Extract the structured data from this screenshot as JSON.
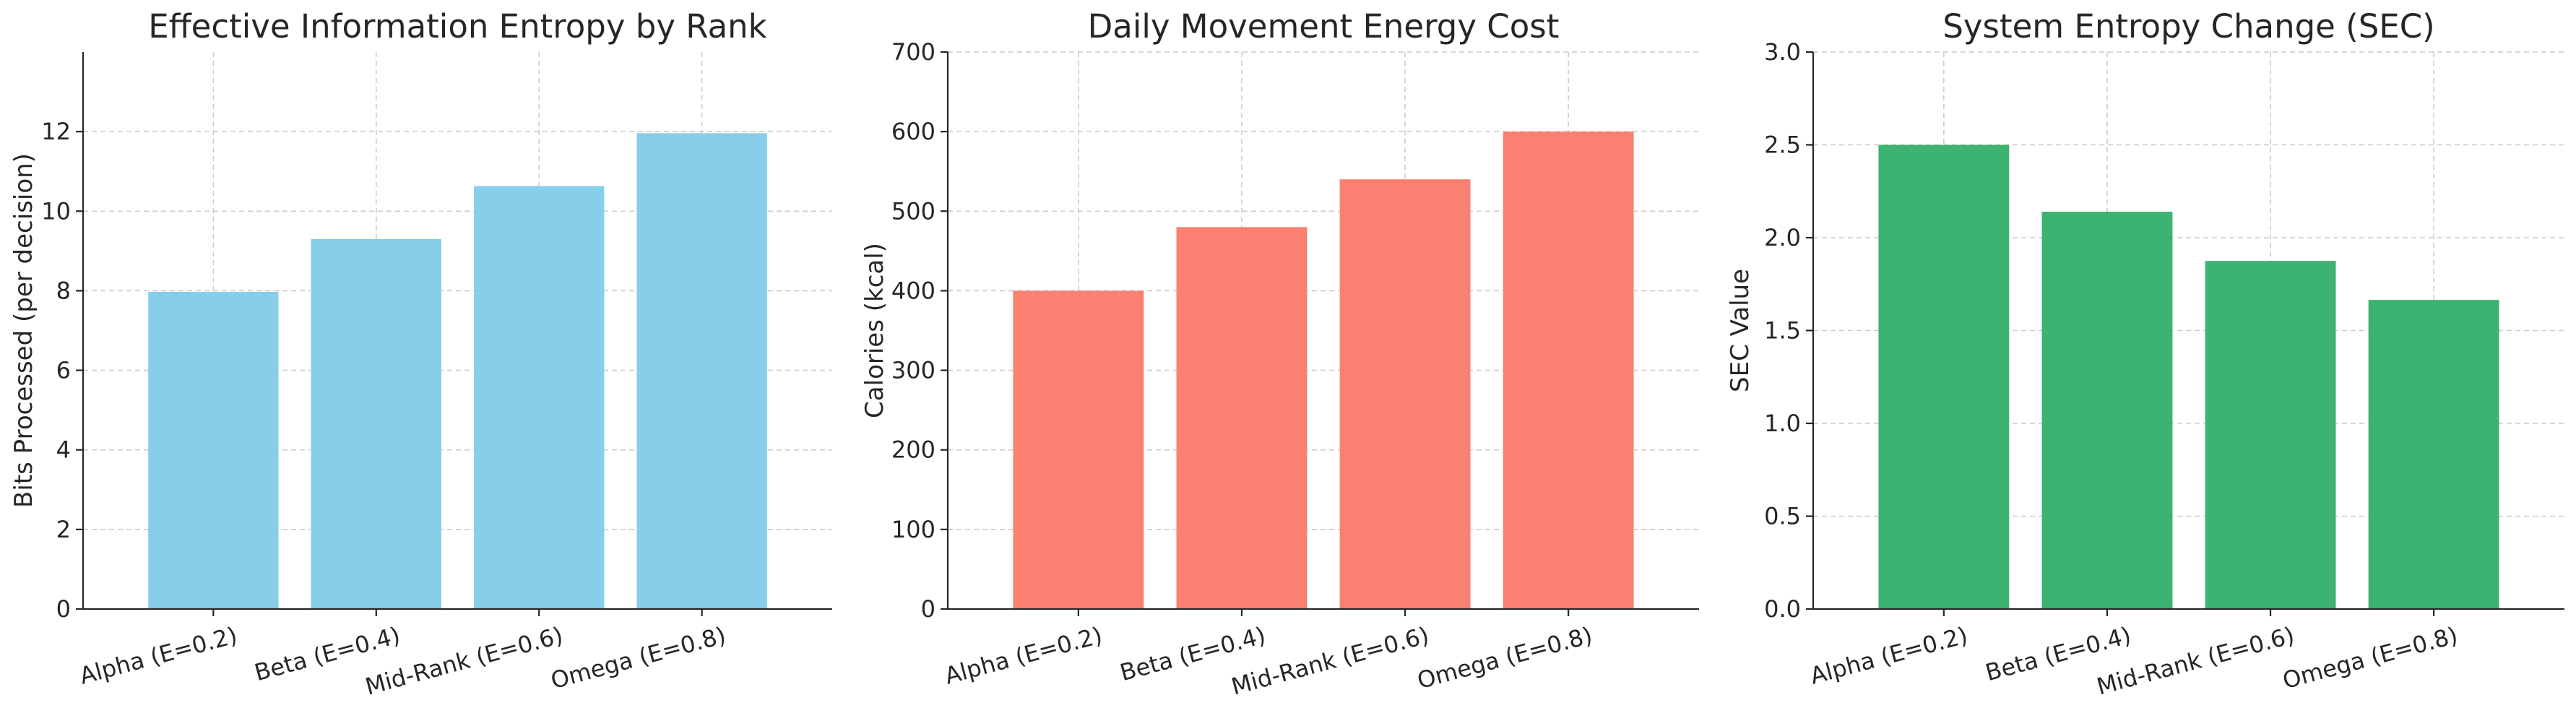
{
  "chart_data": [
    {
      "type": "bar",
      "title": "Effective Information Entropy by Rank",
      "xlabel": "",
      "ylabel": "Bits Processed (per decision)",
      "categories": [
        "Alpha (E=0.2)",
        "Beta (E=0.4)",
        "Mid-Rank (E=0.6)",
        "Omega (E=0.8)"
      ],
      "values": [
        7.97,
        9.3,
        10.63,
        11.96
      ],
      "ylim": [
        0,
        14
      ],
      "yticks": [
        0,
        2,
        4,
        6,
        8,
        10,
        12
      ],
      "ytick_labels": [
        "0",
        "2",
        "4",
        "6",
        "8",
        "10",
        "12"
      ],
      "color": "#87ceeb",
      "grid": true
    },
    {
      "type": "bar",
      "title": "Daily Movement Energy Cost",
      "xlabel": "",
      "ylabel": "Calories (kcal)",
      "categories": [
        "Alpha (E=0.2)",
        "Beta (E=0.4)",
        "Mid-Rank (E=0.6)",
        "Omega (E=0.8)"
      ],
      "values": [
        400,
        480,
        540,
        600
      ],
      "ylim": [
        0,
        700
      ],
      "yticks": [
        0,
        100,
        200,
        300,
        400,
        500,
        600,
        700
      ],
      "ytick_labels": [
        "0",
        "100",
        "200",
        "300",
        "400",
        "500",
        "600",
        "700"
      ],
      "color": "#fa8072",
      "grid": true
    },
    {
      "type": "bar",
      "title": "System Entropy Change (SEC)",
      "xlabel": "",
      "ylabel": "SEC Value",
      "categories": [
        "Alpha (E=0.2)",
        "Beta (E=0.4)",
        "Mid-Rank (E=0.6)",
        "Omega (E=0.8)"
      ],
      "values": [
        2.5,
        2.14,
        1.875,
        1.665
      ],
      "ylim": [
        0,
        3.0
      ],
      "yticks": [
        0,
        0.5,
        1.0,
        1.5,
        2.0,
        2.5,
        3.0
      ],
      "ytick_labels": [
        "0.0",
        "0.5",
        "1.0",
        "1.5",
        "2.0",
        "2.5",
        "3.0"
      ],
      "color": "#3cb371",
      "grid": true
    }
  ]
}
